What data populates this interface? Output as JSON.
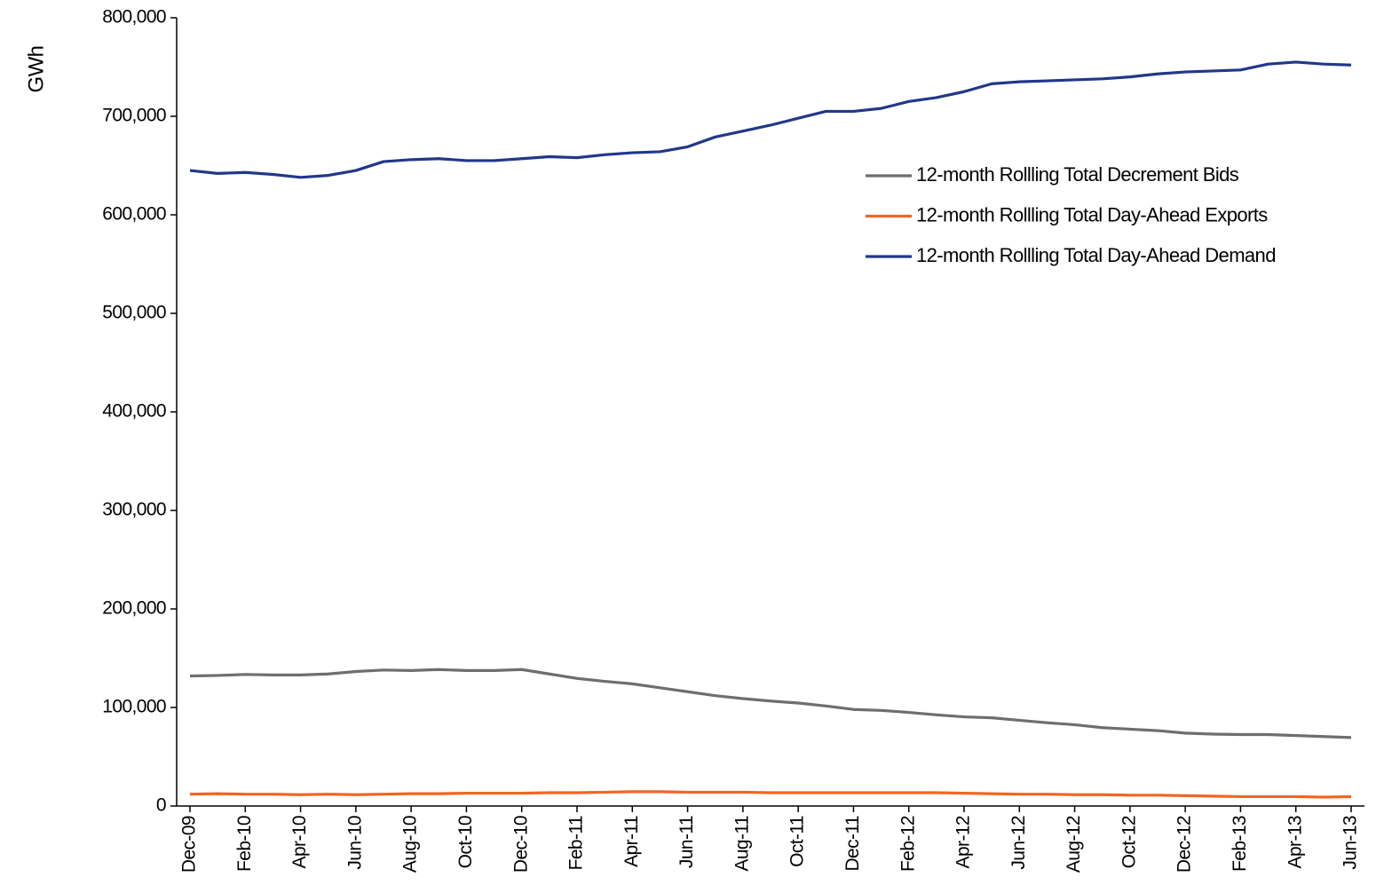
{
  "chart_data": {
    "type": "line",
    "y_label": "GWh",
    "categories": [
      "Dec-09",
      null,
      "Feb-10",
      null,
      "Apr-10",
      null,
      "Jun-10",
      null,
      "Aug-10",
      null,
      "Oct-10",
      null,
      "Dec-10",
      null,
      "Feb-11",
      null,
      "Apr-11",
      null,
      "Jun-11",
      null,
      "Aug-11",
      null,
      "Oct-11",
      null,
      "Dec-11",
      null,
      "Feb-12",
      null,
      "Apr-12",
      null,
      "Jun-12",
      null,
      "Aug-12",
      null,
      "Oct-12",
      null,
      "Dec-12",
      null,
      "Feb-13",
      null,
      "Apr-13",
      null,
      "Jun-13"
    ],
    "series": [
      {
        "name": "12-month Rollling Total Decrement Bids",
        "color": "#6d6e71",
        "values": [
          132000,
          132500,
          133500,
          133000,
          133000,
          134000,
          136500,
          138000,
          137500,
          138500,
          137500,
          137500,
          138500,
          134000,
          129500,
          126500,
          124000,
          120000,
          116000,
          112000,
          109000,
          106500,
          104500,
          101500,
          98000,
          97000,
          95000,
          92500,
          90500,
          89500,
          87000,
          84500,
          82500,
          79500,
          78000,
          76500,
          74000,
          73000,
          72500,
          72500,
          71500,
          70500,
          69500
        ]
      },
      {
        "name": "12-month Rollling Total Day-Ahead Exports",
        "color": "#f26522",
        "values": [
          12000,
          12500,
          12000,
          12000,
          11500,
          12000,
          11500,
          12000,
          12500,
          12500,
          13000,
          13000,
          13000,
          13500,
          13500,
          14000,
          14500,
          14500,
          14000,
          14000,
          14000,
          13500,
          13500,
          13500,
          13500,
          13500,
          13500,
          13500,
          13000,
          12500,
          12000,
          12000,
          11500,
          11500,
          11000,
          11000,
          10500,
          10000,
          9500,
          9500,
          9500,
          9000,
          9500
        ]
      },
      {
        "name": "12-month Rollling Total Day-Ahead Demand",
        "color": "#21378a",
        "values": [
          645000,
          642000,
          643000,
          641000,
          638000,
          640000,
          645000,
          654000,
          656000,
          657000,
          655000,
          655000,
          657000,
          659000,
          658000,
          661000,
          663000,
          664000,
          669000,
          679000,
          685000,
          691000,
          698000,
          705000,
          705000,
          708000,
          715000,
          719000,
          725000,
          733000,
          735000,
          736000,
          737000,
          738000,
          740000,
          743000,
          745000,
          746000,
          747000,
          753000,
          755000,
          753000,
          752000
        ]
      }
    ],
    "ylim": [
      0,
      800000
    ],
    "yticks": [
      0,
      {
        "value": 100000,
        "label": "100,000"
      },
      {
        "value": 200000,
        "label": "200,000"
      },
      {
        "value": 300000,
        "label": "300,000"
      },
      {
        "value": 400000,
        "label": "400,000"
      },
      {
        "value": 500000,
        "label": "500,000"
      },
      {
        "value": 600000,
        "label": "600,000"
      },
      {
        "value": 700000,
        "label": "700,000"
      },
      {
        "value": 800000,
        "label": "800,000"
      }
    ],
    "grid": false,
    "legend": "upper right"
  }
}
